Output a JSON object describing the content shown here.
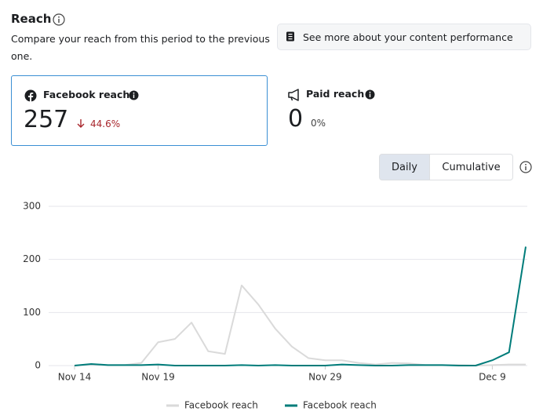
{
  "header": {
    "title": "Reach",
    "subtitle": "Compare your reach from this period to the previous one.",
    "button": "See more about your content performance"
  },
  "cards": [
    {
      "label": "Facebook reach",
      "value": 257,
      "change": "44.6%"
    },
    {
      "label": "Paid reach",
      "value": 0,
      "change": "0%"
    }
  ],
  "toggle": [
    "Daily",
    "Cumulative"
  ],
  "chart_data": {
    "type": "line",
    "categories": [
      "Nov 14",
      null,
      null,
      null,
      null,
      "Nov 19",
      null,
      null,
      null,
      null,
      null,
      null,
      null,
      null,
      null,
      "Nov 29",
      null,
      null,
      null,
      null,
      null,
      null,
      null,
      null,
      null,
      "Dec 9",
      null,
      null
    ],
    "series": [
      {
        "name": "Facebook reach",
        "color": "#dadada",
        "values": [
          0,
          2,
          1,
          1,
          5,
          44,
          50,
          81,
          27,
          22,
          151,
          115,
          70,
          36,
          14,
          10,
          10,
          5,
          2,
          5,
          4,
          1,
          1,
          1,
          0,
          1,
          2,
          2
        ]
      },
      {
        "name": "Facebook reach",
        "color": "#007c7a",
        "values": [
          0,
          3,
          1,
          1,
          1,
          2,
          0,
          0,
          0,
          0,
          1,
          0,
          1,
          0,
          0,
          0,
          2,
          1,
          0,
          0,
          1,
          1,
          1,
          0,
          0,
          10,
          25,
          224
        ]
      }
    ],
    "ylim": [
      0,
      300
    ],
    "yticks": [
      0,
      100,
      200,
      300
    ],
    "grid": true
  }
}
